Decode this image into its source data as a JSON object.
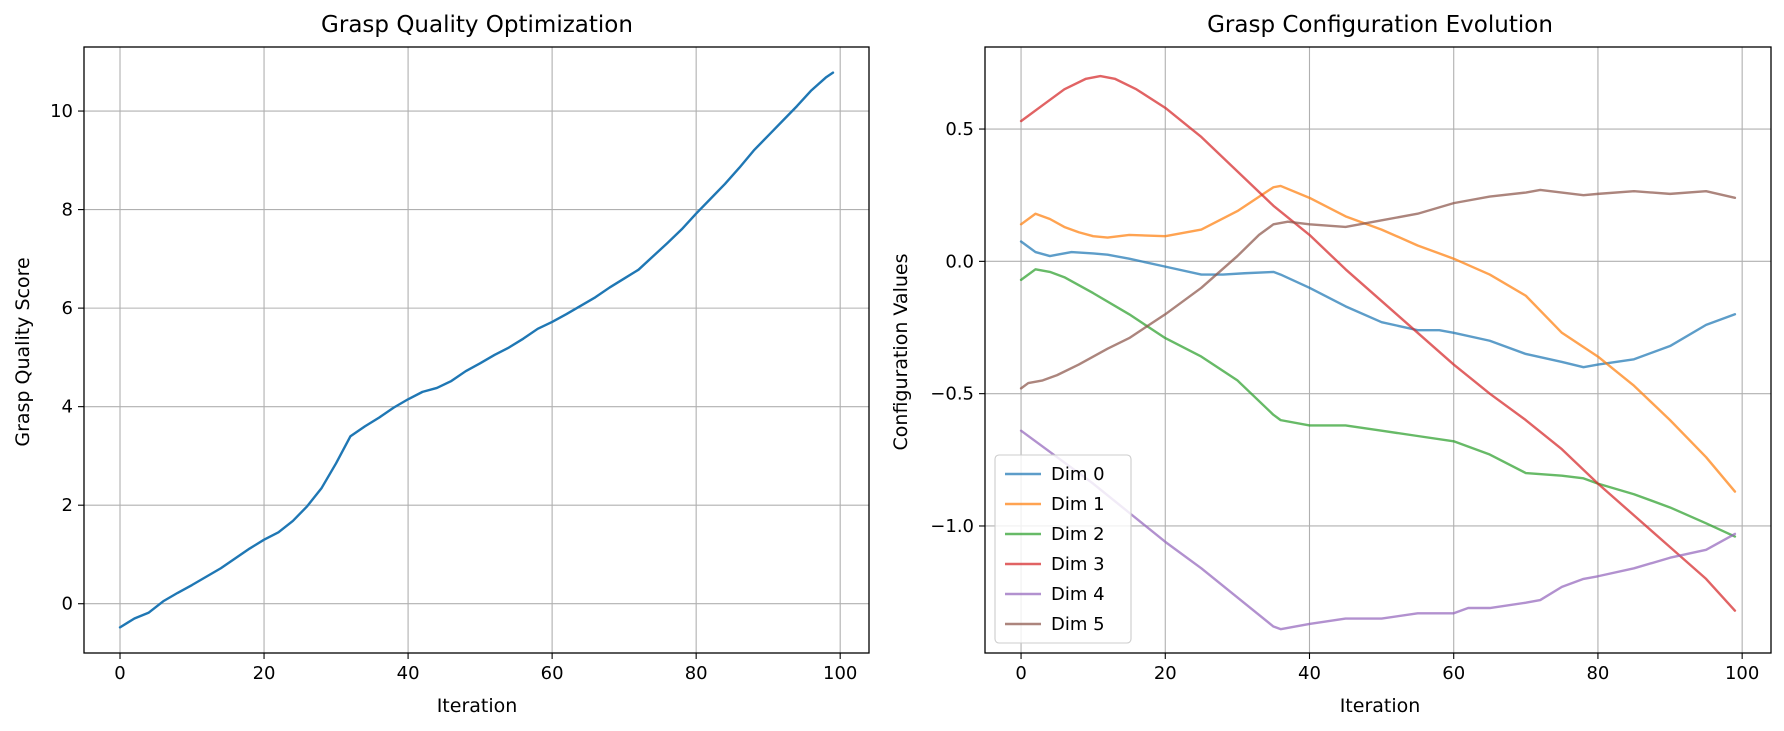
{
  "chart_data": [
    {
      "type": "line",
      "title": "Grasp Quality Optimization",
      "xlabel": "Iteration",
      "ylabel": "Grasp Quality Score",
      "xlim": [
        -5,
        104
      ],
      "ylim": [
        -1,
        11.3
      ],
      "xticks": [
        0,
        20,
        40,
        60,
        80,
        100
      ],
      "yticks": [
        0,
        2,
        4,
        6,
        8,
        10
      ],
      "xtick_labels": [
        "0",
        "20",
        "40",
        "60",
        "80",
        "100"
      ],
      "ytick_labels": [
        "0",
        "2",
        "4",
        "6",
        "8",
        "10"
      ],
      "grid": true,
      "series": [
        {
          "color": "#1f77b4",
          "x": [
            0,
            2,
            4,
            6,
            8,
            10,
            12,
            14,
            16,
            18,
            20,
            22,
            24,
            26,
            28,
            30,
            32,
            34,
            36,
            38,
            40,
            42,
            44,
            46,
            48,
            50,
            52,
            54,
            56,
            58,
            60,
            62,
            64,
            66,
            68,
            70,
            72,
            74,
            76,
            78,
            80,
            82,
            84,
            86,
            88,
            90,
            92,
            94,
            96,
            98,
            99
          ],
          "values": [
            -0.48,
            -0.3,
            -0.18,
            0.05,
            0.22,
            0.38,
            0.55,
            0.72,
            0.92,
            1.12,
            1.3,
            1.45,
            1.68,
            1.98,
            2.35,
            2.85,
            3.4,
            3.6,
            3.78,
            3.98,
            4.15,
            4.3,
            4.38,
            4.52,
            4.72,
            4.88,
            5.05,
            5.2,
            5.38,
            5.58,
            5.72,
            5.88,
            6.05,
            6.22,
            6.42,
            6.6,
            6.78,
            7.05,
            7.32,
            7.6,
            7.92,
            8.22,
            8.52,
            8.85,
            9.2,
            9.5,
            9.8,
            10.1,
            10.42,
            10.68,
            10.78
          ]
        }
      ]
    },
    {
      "type": "line",
      "title": "Grasp Configuration Evolution",
      "xlabel": "Iteration",
      "ylabel": "Configuration Values",
      "xlim": [
        -5,
        104
      ],
      "ylim": [
        -1.48,
        0.81
      ],
      "xticks": [
        0,
        20,
        40,
        60,
        80,
        100
      ],
      "yticks": [
        0.5,
        0.0,
        -0.5,
        -1.0
      ],
      "xtick_labels": [
        "0",
        "20",
        "40",
        "60",
        "80",
        "100"
      ],
      "ytick_labels": [
        "0.5",
        "0.0",
        "−0.5",
        "−1.0"
      ],
      "grid": true,
      "legend": "lower-left",
      "series": [
        {
          "name": "Dim 0",
          "color": "#1f77b4",
          "x": [
            0,
            2,
            4,
            5,
            7,
            10,
            12,
            15,
            20,
            25,
            28,
            31,
            35,
            36,
            40,
            45,
            50,
            55,
            58,
            60,
            65,
            70,
            75,
            78,
            80,
            85,
            90,
            95,
            99
          ],
          "values": [
            0.075,
            0.035,
            0.02,
            0.025,
            0.035,
            0.03,
            0.025,
            0.01,
            -0.02,
            -0.05,
            -0.05,
            -0.045,
            -0.04,
            -0.05,
            -0.1,
            -0.17,
            -0.23,
            -0.26,
            -0.26,
            -0.27,
            -0.3,
            -0.35,
            -0.38,
            -0.4,
            -0.39,
            -0.37,
            -0.32,
            -0.24,
            -0.2
          ]
        },
        {
          "name": "Dim 1",
          "color": "#ff7f0e",
          "x": [
            0,
            2,
            4,
            6,
            8,
            10,
            12,
            15,
            20,
            25,
            30,
            35,
            36,
            40,
            45,
            50,
            55,
            60,
            65,
            70,
            75,
            80,
            85,
            90,
            95,
            99
          ],
          "values": [
            0.14,
            0.18,
            0.16,
            0.13,
            0.11,
            0.095,
            0.09,
            0.1,
            0.095,
            0.12,
            0.19,
            0.28,
            0.285,
            0.24,
            0.17,
            0.12,
            0.06,
            0.01,
            -0.05,
            -0.13,
            -0.27,
            -0.36,
            -0.47,
            -0.6,
            -0.74,
            -0.87
          ]
        },
        {
          "name": "Dim 2",
          "color": "#2ca02c",
          "x": [
            0,
            2,
            4,
            6,
            10,
            15,
            20,
            25,
            30,
            35,
            36,
            40,
            45,
            50,
            55,
            60,
            65,
            70,
            75,
            78,
            80,
            85,
            90,
            95,
            99
          ],
          "values": [
            -0.07,
            -0.03,
            -0.04,
            -0.06,
            -0.12,
            -0.2,
            -0.29,
            -0.36,
            -0.45,
            -0.58,
            -0.6,
            -0.62,
            -0.62,
            -0.64,
            -0.66,
            -0.68,
            -0.73,
            -0.8,
            -0.81,
            -0.82,
            -0.84,
            -0.88,
            -0.93,
            -0.99,
            -1.04
          ]
        },
        {
          "name": "Dim 3",
          "color": "#d62728",
          "x": [
            0,
            3,
            6,
            9,
            11,
            13,
            16,
            20,
            25,
            30,
            35,
            40,
            45,
            50,
            55,
            60,
            65,
            70,
            75,
            80,
            85,
            90,
            95,
            99
          ],
          "values": [
            0.53,
            0.59,
            0.65,
            0.69,
            0.7,
            0.69,
            0.65,
            0.58,
            0.47,
            0.34,
            0.21,
            0.1,
            -0.03,
            -0.15,
            -0.27,
            -0.39,
            -0.5,
            -0.6,
            -0.71,
            -0.84,
            -0.96,
            -1.08,
            -1.2,
            -1.32
          ]
        },
        {
          "name": "Dim 4",
          "color": "#9467bd",
          "x": [
            0,
            5,
            10,
            15,
            20,
            25,
            30,
            35,
            36,
            40,
            45,
            50,
            55,
            60,
            62,
            65,
            70,
            72,
            75,
            78,
            80,
            85,
            90,
            95,
            99
          ],
          "values": [
            -0.64,
            -0.74,
            -0.84,
            -0.95,
            -1.06,
            -1.16,
            -1.27,
            -1.38,
            -1.39,
            -1.37,
            -1.35,
            -1.35,
            -1.33,
            -1.33,
            -1.31,
            -1.31,
            -1.29,
            -1.28,
            -1.23,
            -1.2,
            -1.19,
            -1.16,
            -1.12,
            -1.09,
            -1.03
          ]
        },
        {
          "name": "Dim 5",
          "color": "#8c564b",
          "x": [
            0,
            1,
            3,
            5,
            8,
            12,
            15,
            20,
            25,
            30,
            33,
            35,
            37,
            40,
            45,
            50,
            55,
            60,
            65,
            70,
            72,
            75,
            78,
            80,
            85,
            90,
            95,
            99
          ],
          "values": [
            -0.48,
            -0.46,
            -0.45,
            -0.43,
            -0.39,
            -0.33,
            -0.29,
            -0.2,
            -0.1,
            0.02,
            0.1,
            0.14,
            0.15,
            0.14,
            0.13,
            0.155,
            0.18,
            0.22,
            0.245,
            0.26,
            0.27,
            0.26,
            0.25,
            0.255,
            0.265,
            0.255,
            0.265,
            0.24
          ]
        }
      ]
    }
  ]
}
